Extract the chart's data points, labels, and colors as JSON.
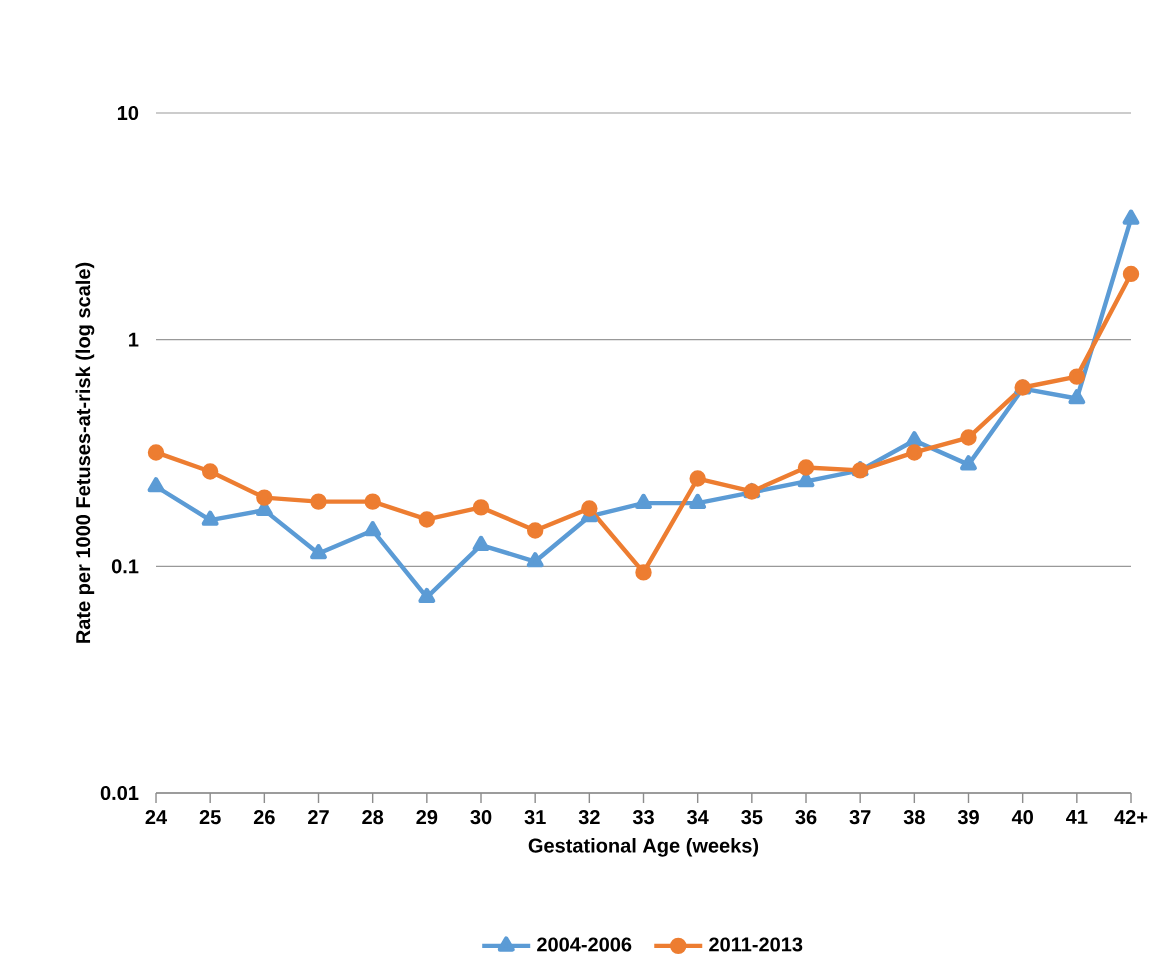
{
  "chart_data": {
    "type": "line",
    "xlabel": "Gestational Age (weeks)",
    "ylabel": "Rate per 1000 Fetuses-at-risk (log scale)",
    "categories": [
      "24",
      "25",
      "26",
      "27",
      "28",
      "29",
      "30",
      "31",
      "32",
      "33",
      "34",
      "35",
      "36",
      "37",
      "38",
      "39",
      "40",
      "41",
      "42+"
    ],
    "series": [
      {
        "name": "2004-2006",
        "color": "#5b9bd5",
        "marker": "triangle",
        "values": [
          0.225,
          0.16,
          0.177,
          0.114,
          0.144,
          0.073,
          0.124,
          0.105,
          0.166,
          0.19,
          0.19,
          0.212,
          0.237,
          0.265,
          0.359,
          0.281,
          0.608,
          0.55,
          3.41
        ]
      },
      {
        "name": "2011-2013",
        "color": "#ed7d31",
        "marker": "circle",
        "values": [
          0.318,
          0.262,
          0.201,
          0.193,
          0.193,
          0.161,
          0.182,
          0.144,
          0.18,
          0.094,
          0.244,
          0.214,
          0.273,
          0.265,
          0.318,
          0.37,
          0.615,
          0.687,
          1.95
        ]
      }
    ],
    "log": "y",
    "ylim": [
      0.01,
      10
    ],
    "yticks": [
      0.01,
      0.1,
      1,
      10
    ],
    "grid": "y",
    "legend": "bottom",
    "line_style": "solid"
  }
}
